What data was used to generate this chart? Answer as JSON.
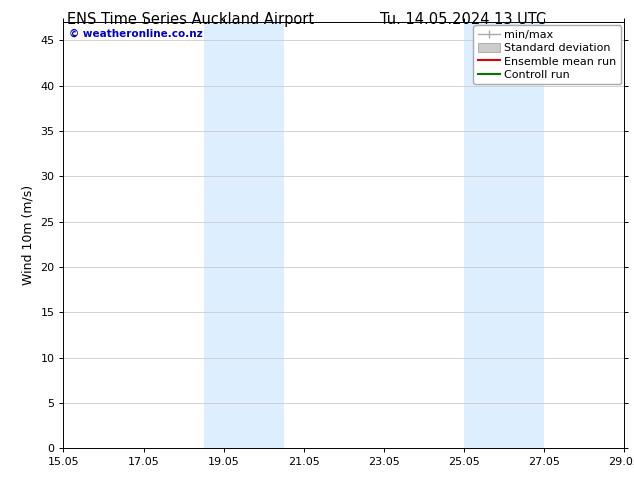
{
  "title_left": "ENS Time Series Auckland Airport",
  "title_right": "Tu. 14.05.2024 13 UTC",
  "ylabel": "Wind 10m (m/s)",
  "watermark": "© weatheronline.co.nz",
  "ylim": [
    0,
    47
  ],
  "yticks": [
    0,
    5,
    10,
    15,
    20,
    25,
    30,
    35,
    40,
    45
  ],
  "xtick_labels": [
    "15.05",
    "17.05",
    "19.05",
    "21.05",
    "23.05",
    "25.05",
    "27.05",
    "29.05"
  ],
  "xtick_positions": [
    0,
    2,
    4,
    6,
    8,
    10,
    12,
    14
  ],
  "xlim": [
    0,
    14
  ],
  "shaded_bands": [
    {
      "x_start": 3.5,
      "x_end": 5.5
    },
    {
      "x_start": 10.0,
      "x_end": 12.0
    }
  ],
  "shaded_color": "#ddeeff",
  "background_color": "#ffffff",
  "plot_bg_color": "#ffffff",
  "grid_color": "#cccccc",
  "watermark_color": "#0000cc",
  "title_fontsize": 10.5,
  "axis_label_fontsize": 9,
  "tick_fontsize": 8,
  "legend_fontsize": 8,
  "minmax_color": "#aaaaaa",
  "std_color": "#cccccc",
  "ensemble_color": "#dd0000",
  "control_color": "#007700"
}
